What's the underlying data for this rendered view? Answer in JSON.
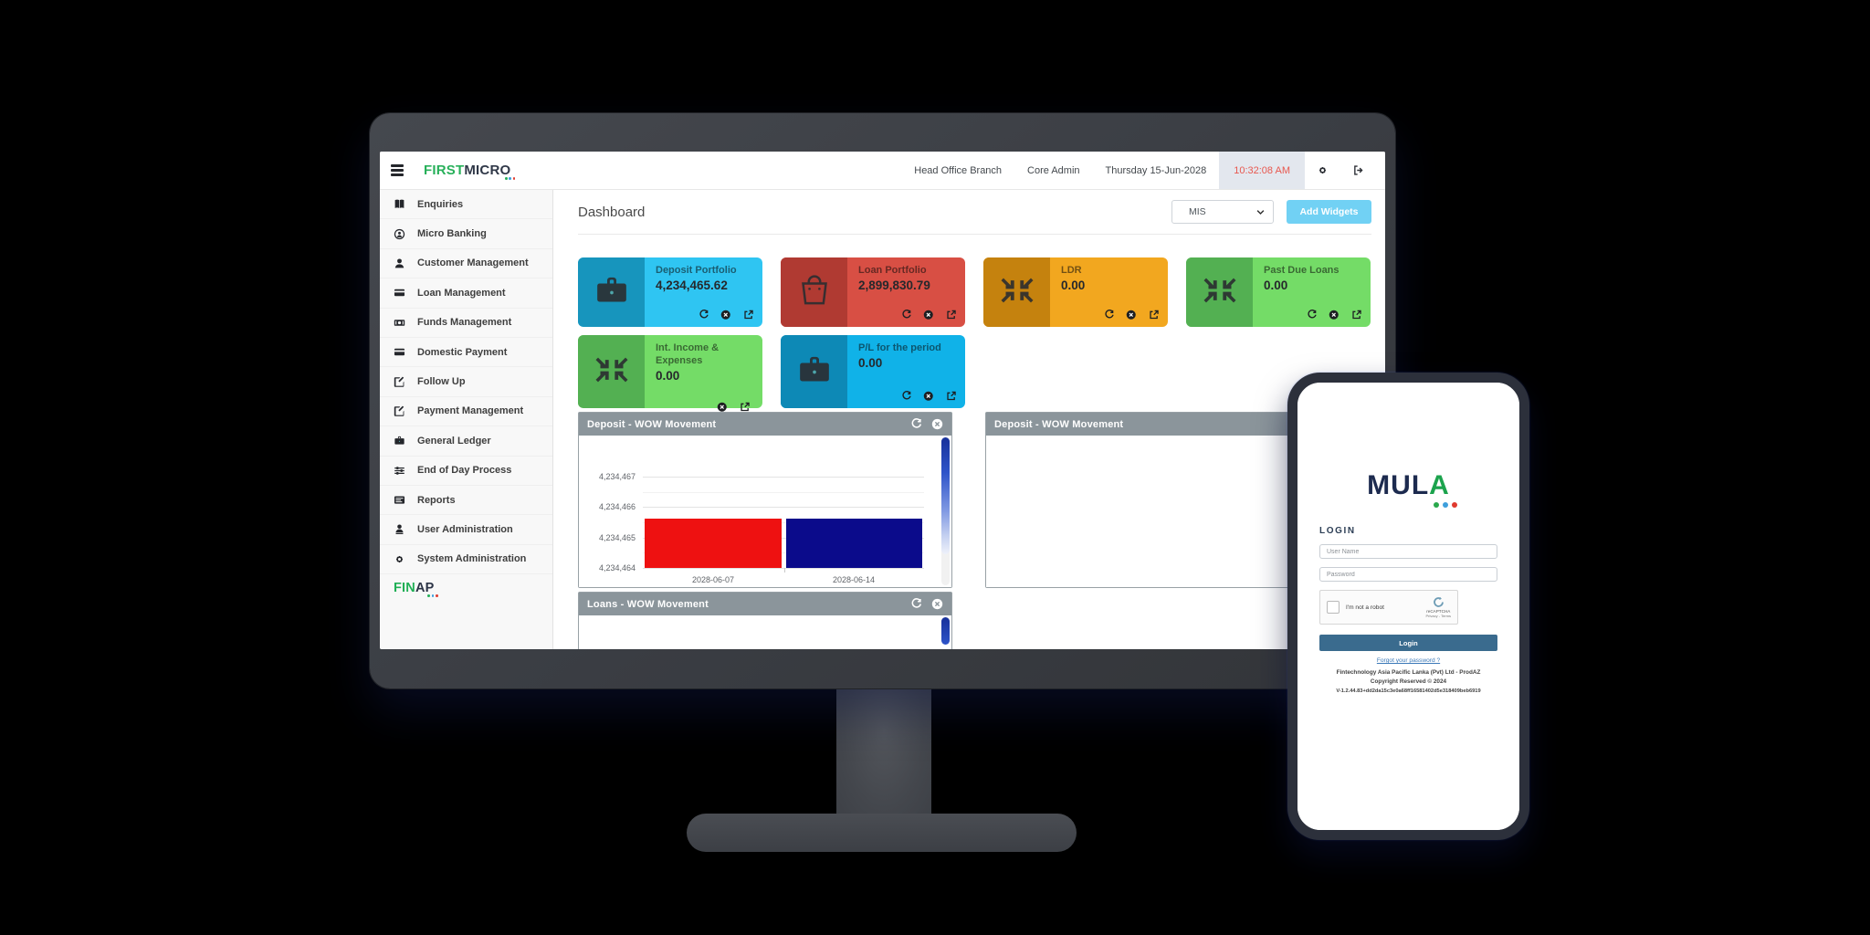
{
  "header": {
    "logo": {
      "part1": "FIRST",
      "part2": "MICRO"
    },
    "branch": "Head Office Branch",
    "role": "Core Admin",
    "date": "Thursday 15-Jun-2028",
    "time": "10:32:08 AM",
    "icons": [
      "gear-icon",
      "signout-icon"
    ]
  },
  "sidebar": {
    "items": [
      {
        "label": "Enquiries",
        "icon": "book-icon"
      },
      {
        "label": "Micro Banking",
        "icon": "id-badge-icon"
      },
      {
        "label": "Customer Management",
        "icon": "person-icon"
      },
      {
        "label": "Loan Management",
        "icon": "credit-card-icon"
      },
      {
        "label": "Funds Management",
        "icon": "banknote-icon"
      },
      {
        "label": "Domestic Payment",
        "icon": "credit-card-icon"
      },
      {
        "label": "Follow Up",
        "icon": "edit-square-icon"
      },
      {
        "label": "Payment Management",
        "icon": "edit-square-icon"
      },
      {
        "label": "General Ledger",
        "icon": "briefcase-icon"
      },
      {
        "label": "End of Day Process",
        "icon": "sliders-icon"
      },
      {
        "label": "Reports",
        "icon": "report-icon"
      },
      {
        "label": "User Administration",
        "icon": "user-icon"
      },
      {
        "label": "System Administration",
        "icon": "gear-icon"
      }
    ],
    "footer_logo": {
      "part1": "FIN",
      "part2": "AP"
    }
  },
  "main": {
    "title": "Dashboard",
    "widget_select_value": "MIS",
    "add_widgets_label": "Add Widgets",
    "cards": [
      {
        "title": "Deposit Portfolio",
        "value": "4,234,465.62",
        "icon": "briefcase-icon",
        "bg": "#2fc5f2",
        "panel_bg": "#1795bd",
        "actions": [
          "refresh-icon",
          "remove-icon",
          "expand-icon"
        ],
        "icons_below": false
      },
      {
        "title": "Loan Portfolio",
        "value": "2,899,830.79",
        "icon": "shopping-bag-icon",
        "bg": "#d84f44",
        "panel_bg": "#b03a32",
        "actions": [
          "refresh-icon",
          "remove-icon",
          "expand-icon"
        ],
        "icons_below": false
      },
      {
        "title": "LDR",
        "value": "0.00",
        "icon": "compress-icon",
        "bg": "#f2a71f",
        "panel_bg": "#c5820e",
        "actions": [
          "refresh-icon",
          "remove-icon",
          "expand-icon"
        ],
        "icons_below": false
      },
      {
        "title": "Past Due Loans",
        "value": "0.00",
        "icon": "compress-icon",
        "bg": "#74dc67",
        "panel_bg": "#53b052",
        "actions": [
          "refresh-icon",
          "remove-icon",
          "expand-icon"
        ],
        "icons_below": false
      },
      {
        "title": "Int. Income & Expenses",
        "value": "0.00",
        "icon": "compress-icon",
        "bg": "#74dc67",
        "panel_bg": "#53b052",
        "actions": [
          "remove-icon",
          "expand-icon"
        ],
        "icons_below": true
      },
      {
        "title": "P/L for the period",
        "value": "0.00",
        "icon": "briefcase-icon",
        "bg": "#10b2e8",
        "panel_bg": "#0d89b6",
        "actions": [
          "refresh-icon",
          "remove-icon",
          "expand-icon"
        ],
        "icons_below": false
      }
    ],
    "panels": {
      "deposit_chart": {
        "title": "Deposit - WOW Movement",
        "icons": [
          "refresh-icon",
          "close-icon"
        ]
      },
      "deposit_empty": {
        "title": "Deposit - WOW Movement",
        "icons": [
          "refresh-icon",
          "close-icon"
        ]
      },
      "loans": {
        "title": "Loans - WOW Movement",
        "icons": [
          "refresh-icon",
          "close-icon"
        ]
      }
    }
  },
  "chart_data": {
    "type": "bar",
    "title": "Deposit - WOW Movement",
    "categories": [
      "2028-06-07",
      "2028-06-14"
    ],
    "values": [
      4234465.62,
      4234465.62
    ],
    "colors": [
      "#ee1111",
      "#0b0b8b"
    ],
    "ylim": [
      4234464,
      4234467
    ],
    "yticks": [
      4234467,
      4234466,
      4234465,
      4234464
    ],
    "ytick_labels": [
      "4,234,467",
      "4,234,466",
      "4,234,465",
      "4,234,464"
    ],
    "grid": true,
    "legend_position": "none"
  },
  "phone": {
    "logo": {
      "part1": "MUL",
      "part2": "A"
    },
    "login_heading": "LOGIN",
    "username_placeholder": "User Name",
    "password_placeholder": "Password",
    "recaptcha": {
      "label": "I'm not a robot",
      "brand": "reCAPTCHA",
      "links": "Privacy - Terms"
    },
    "login_button": "Login",
    "forgot_link": "Forgot your password ?",
    "footer": {
      "company": "Fintechnology Asia Pacific Lanka (Pvt) Ltd - ProdAZ",
      "copyright": "Copyright Reserved © 2024",
      "version": "V-1.2.44.83+dd2da15c3e0a68ff16581402d5e318409beb6919"
    }
  }
}
